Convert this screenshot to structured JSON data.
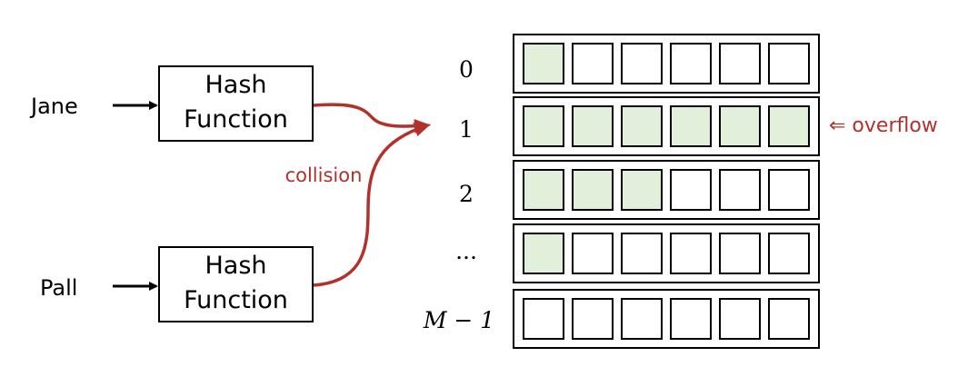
{
  "inputs": [
    {
      "name": "Jane",
      "box_line1": "Hash",
      "box_line2": "Function"
    },
    {
      "name": "Pall",
      "box_line1": "Hash",
      "box_line2": "Function"
    }
  ],
  "annotations": {
    "collision": "collision",
    "overflow": "⇐ overflow"
  },
  "buckets": [
    {
      "label": "0",
      "filled": 1,
      "slots": 6
    },
    {
      "label": "1",
      "filled": 6,
      "slots": 6
    },
    {
      "label": "2",
      "filled": 3,
      "slots": 6
    },
    {
      "label": "...",
      "filled": 1,
      "slots": 6
    },
    {
      "label": "M − 1",
      "filled": 0,
      "slots": 6
    }
  ],
  "colors": {
    "slot_fill": "#e2efda",
    "slot_empty": "#ffffff",
    "stroke": "#000000",
    "accent": "#b3312b"
  }
}
